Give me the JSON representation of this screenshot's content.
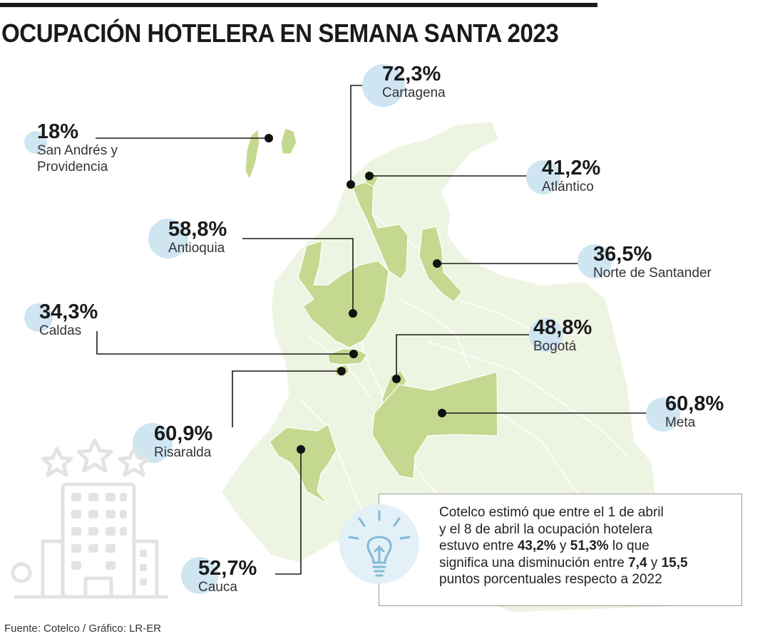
{
  "title": "OCUPACIÓN HOTELERA EN SEMANA SANTA 2023",
  "regions": [
    {
      "id": "cartagena",
      "pct": "72,3%",
      "name": "Cartagena"
    },
    {
      "id": "san-andres",
      "pct": "18%",
      "name": "San Andrés y\nProvidencia"
    },
    {
      "id": "atlantico",
      "pct": "41,2%",
      "name": "Atlántico"
    },
    {
      "id": "antioquia",
      "pct": "58,8%",
      "name": "Antioquia"
    },
    {
      "id": "norte-santander",
      "pct": "36,5%",
      "name": "Norte de Santander"
    },
    {
      "id": "caldas",
      "pct": "34,3%",
      "name": "Caldas"
    },
    {
      "id": "bogota",
      "pct": "48,8%",
      "name": "Bogotá"
    },
    {
      "id": "meta",
      "pct": "60,8%",
      "name": "Meta"
    },
    {
      "id": "risaralda",
      "pct": "60,9%",
      "name": "Risaralda"
    },
    {
      "id": "cauca",
      "pct": "52,7%",
      "name": "Cauca"
    }
  ],
  "info": {
    "line1": "Cotelco estimó que entre el 1 de abril",
    "line2": "y el 8 de abril la ocupación hotelera",
    "line3_pre": "estuvo entre ",
    "low": "43,2%",
    "and1": " y ",
    "high": "51,3%",
    "line3_post": " lo que",
    "line4_pre": "significa una disminución entre ",
    "dmin": "7,4",
    "and2": " y ",
    "dmax": "15,5",
    "line5": "puntos porcentuales respecto a 2022"
  },
  "source": "Fuente: Cotelco / Gráfico: LR-ER",
  "colors": {
    "highlight": "#c5d88f",
    "base_map": "#eef4e2",
    "bubble": "#cfe5f2",
    "text": "#1a1a1a"
  }
}
